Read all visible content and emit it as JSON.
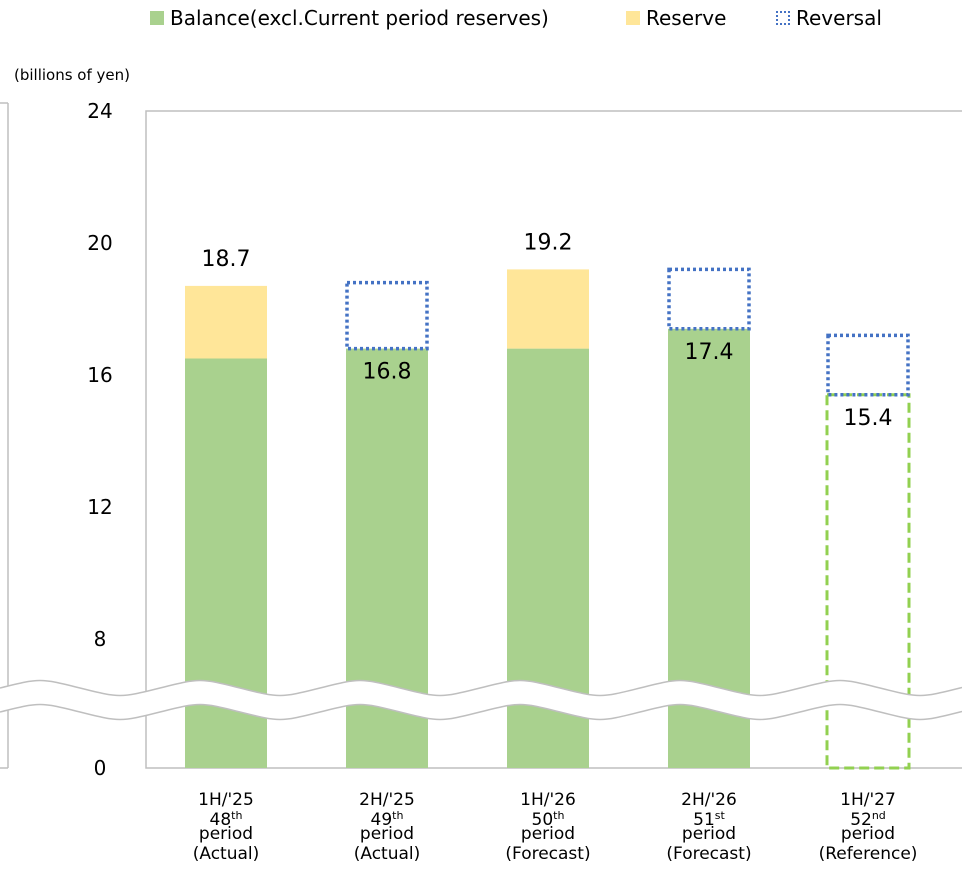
{
  "legend": {
    "balance": "Balance(excl.Current period reserves)",
    "reserve": "Reserve",
    "reversal": "Reversal"
  },
  "colors": {
    "balance": "#a9d18e",
    "reserve": "#ffe699",
    "reversal": "#4472c4",
    "reference_outline": "#92d050",
    "frame": "#bfbfbf"
  },
  "chart_data": {
    "type": "bar",
    "unit_label": "(billions of yen)",
    "ylim": [
      0,
      24
    ],
    "y_ticks": [
      0,
      8,
      12,
      16,
      20,
      24
    ],
    "axis_break": "between 0 and 8",
    "grid": false,
    "legend_position": "top",
    "categories": [
      {
        "line1": "1H/'25",
        "num": "48",
        "sup": "th",
        "line3": "period",
        "line4": "(Actual)"
      },
      {
        "line1": "2H/'25",
        "num": "49",
        "sup": "th",
        "line3": "period",
        "line4": "(Actual)"
      },
      {
        "line1": "1H/'26",
        "num": "50",
        "sup": "th",
        "line3": "period",
        "line4": "(Forecast)"
      },
      {
        "line1": "2H/'26",
        "num": "51",
        "sup": "st",
        "line3": "period",
        "line4": "(Forecast)"
      },
      {
        "line1": "1H/'27",
        "num": "52",
        "sup": "nd",
        "line3": "period",
        "line4": "(Reference)"
      }
    ],
    "series": [
      {
        "name": "Balance(excl.Current period reserves)",
        "values": [
          16.5,
          16.8,
          16.8,
          17.4,
          15.4
        ]
      },
      {
        "name": "Reserve",
        "values": [
          2.2,
          0,
          2.4,
          0,
          0
        ]
      },
      {
        "name": "Reversal",
        "values": [
          0,
          2.0,
          0,
          1.8,
          1.8
        ]
      }
    ],
    "data_labels": [
      "18.7",
      "16.8",
      "19.2",
      "17.4",
      "15.4"
    ],
    "reference_outline_index": 4
  }
}
